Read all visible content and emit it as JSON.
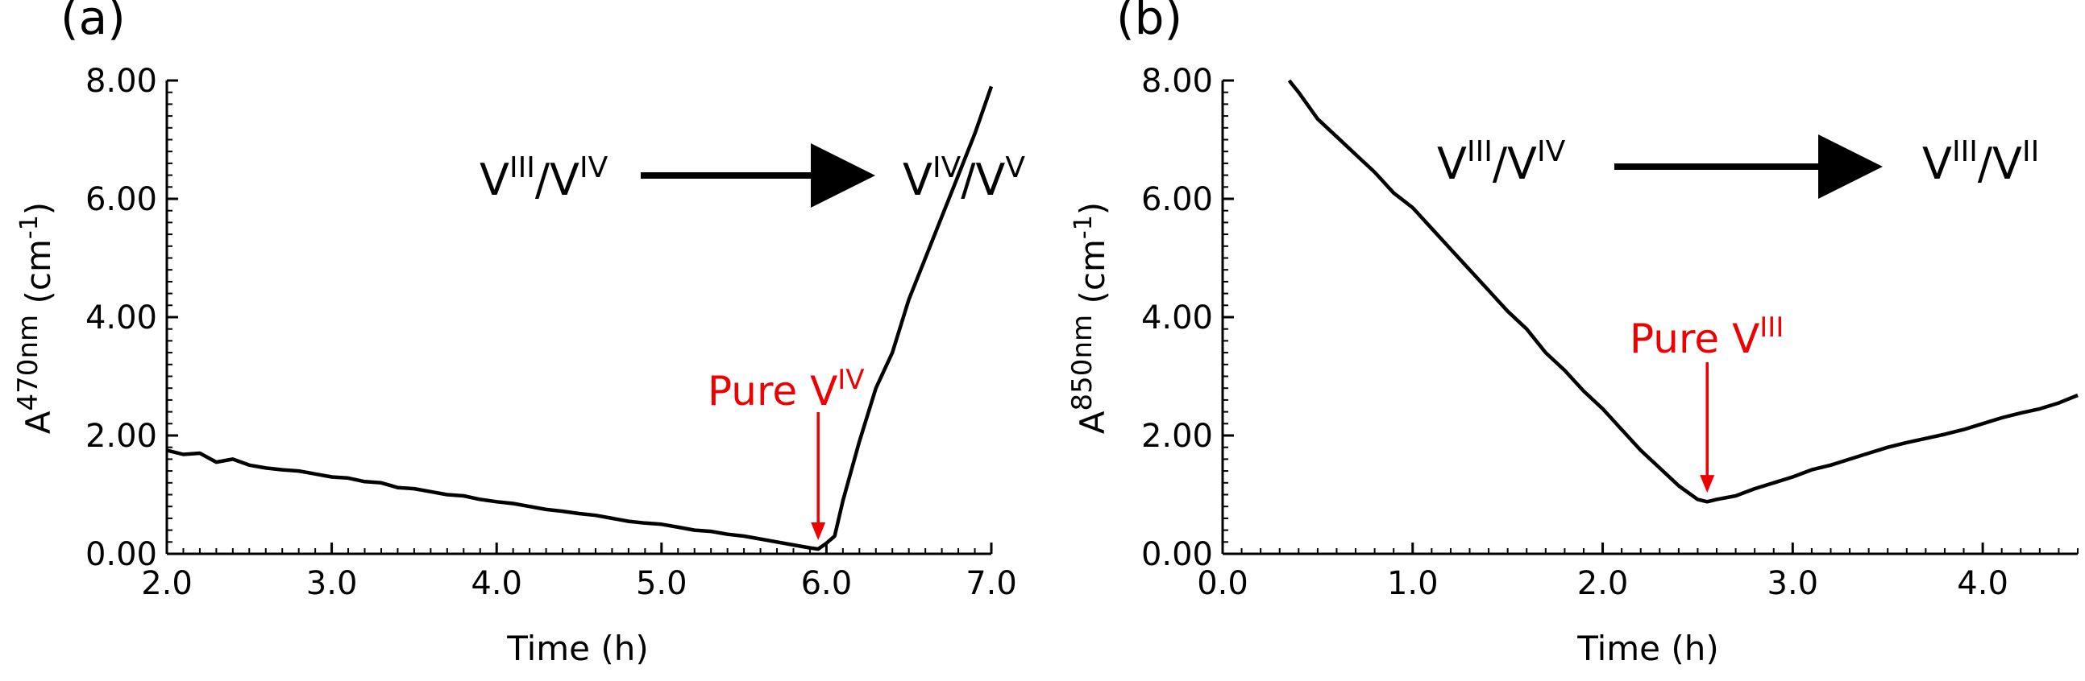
{
  "chart_data": [
    {
      "panel_label": "(a)",
      "type": "line",
      "ylabel_base": "A",
      "ylabel_sup": "470nm",
      "ylabel_unit": "(cm",
      "ylabel_unit_sup": "-1",
      "ylabel_close": ")",
      "xlabel": "Time (h)",
      "xlim": [
        2.0,
        7.0
      ],
      "ylim": [
        0,
        8
      ],
      "xticks": [
        2.0,
        3.0,
        4.0,
        5.0,
        6.0,
        7.0
      ],
      "xtick_labels": [
        "2.0",
        "3.0",
        "4.0",
        "5.0",
        "6.0",
        "7.0"
      ],
      "yticks": [
        0,
        2,
        4,
        6,
        8
      ],
      "ytick_labels": [
        "0.00",
        "2.00",
        "4.00",
        "6.00",
        "8.00"
      ],
      "grid": false,
      "series": [
        {
          "x": [
            2.0,
            2.1,
            2.2,
            2.3,
            2.4,
            2.5,
            2.6,
            2.7,
            2.8,
            2.9,
            3.0,
            3.1,
            3.2,
            3.3,
            3.4,
            3.5,
            3.6,
            3.7,
            3.8,
            3.9,
            4.0,
            4.1,
            4.2,
            4.3,
            4.4,
            4.5,
            4.6,
            4.7,
            4.8,
            4.9,
            5.0,
            5.1,
            5.2,
            5.3,
            5.4,
            5.5,
            5.6,
            5.7,
            5.8,
            5.9,
            5.95,
            6.0,
            6.05,
            6.1,
            6.2,
            6.3,
            6.4,
            6.5,
            6.6,
            6.7,
            6.8,
            6.9,
            7.0
          ],
          "y": [
            1.75,
            1.68,
            1.7,
            1.55,
            1.6,
            1.5,
            1.45,
            1.42,
            1.4,
            1.35,
            1.3,
            1.28,
            1.22,
            1.2,
            1.12,
            1.1,
            1.05,
            1.0,
            0.98,
            0.92,
            0.88,
            0.85,
            0.8,
            0.75,
            0.72,
            0.68,
            0.65,
            0.6,
            0.55,
            0.52,
            0.5,
            0.45,
            0.4,
            0.38,
            0.33,
            0.3,
            0.25,
            0.2,
            0.15,
            0.1,
            0.08,
            0.18,
            0.3,
            0.9,
            1.9,
            2.8,
            3.4,
            4.3,
            5.0,
            5.7,
            6.4,
            7.1,
            7.9
          ]
        }
      ],
      "annotations": [
        {
          "base": "V",
          "sup": "III",
          "sep": "/",
          "base2": "V",
          "sup2": "IV"
        },
        {
          "base": "V",
          "sup": "IV",
          "sep": "/",
          "base2": "V",
          "sup2": "V"
        },
        {
          "text": "Pure V",
          "sup": "IV",
          "color": "#ee0000",
          "x": 5.95,
          "y": 0.15
        }
      ]
    },
    {
      "panel_label": "(b)",
      "type": "line",
      "ylabel_base": "A",
      "ylabel_sup": "850nm",
      "ylabel_unit": "(cm",
      "ylabel_unit_sup": "-1",
      "ylabel_close": ")",
      "xlabel": "Time (h)",
      "xlim": [
        0.0,
        4.5
      ],
      "ylim": [
        0,
        8
      ],
      "xticks": [
        0.0,
        1.0,
        2.0,
        3.0,
        4.0
      ],
      "xtick_labels": [
        "0.0",
        "1.0",
        "2.0",
        "3.0",
        "4.0"
      ],
      "yticks": [
        0,
        2,
        4,
        6,
        8
      ],
      "ytick_labels": [
        "0.00",
        "2.00",
        "4.00",
        "6.00",
        "8.00"
      ],
      "grid": false,
      "series": [
        {
          "x": [
            0.35,
            0.4,
            0.5,
            0.6,
            0.7,
            0.8,
            0.9,
            1.0,
            1.1,
            1.2,
            1.3,
            1.4,
            1.5,
            1.6,
            1.7,
            1.8,
            1.9,
            2.0,
            2.1,
            2.2,
            2.3,
            2.4,
            2.5,
            2.55,
            2.6,
            2.7,
            2.8,
            2.9,
            3.0,
            3.1,
            3.2,
            3.3,
            3.4,
            3.5,
            3.6,
            3.7,
            3.8,
            3.9,
            4.0,
            4.1,
            4.2,
            4.3,
            4.4,
            4.5
          ],
          "y": [
            8.0,
            7.8,
            7.35,
            7.05,
            6.75,
            6.45,
            6.1,
            5.85,
            5.5,
            5.15,
            4.8,
            4.45,
            4.1,
            3.8,
            3.4,
            3.1,
            2.75,
            2.45,
            2.1,
            1.75,
            1.45,
            1.15,
            0.92,
            0.88,
            0.92,
            0.98,
            1.1,
            1.2,
            1.3,
            1.42,
            1.5,
            1.6,
            1.7,
            1.8,
            1.88,
            1.95,
            2.02,
            2.1,
            2.2,
            2.3,
            2.38,
            2.45,
            2.55,
            2.68
          ]
        }
      ],
      "annotations": [
        {
          "base": "V",
          "sup": "III",
          "sep": "/",
          "base2": "V",
          "sup2": "IV"
        },
        {
          "base": "V",
          "sup": "III",
          "sep": "/",
          "base2": "V",
          "sup2": "II"
        },
        {
          "text": "Pure V",
          "sup": "III",
          "color": "#ee0000",
          "x": 2.55,
          "y": 0.95
        }
      ]
    }
  ]
}
